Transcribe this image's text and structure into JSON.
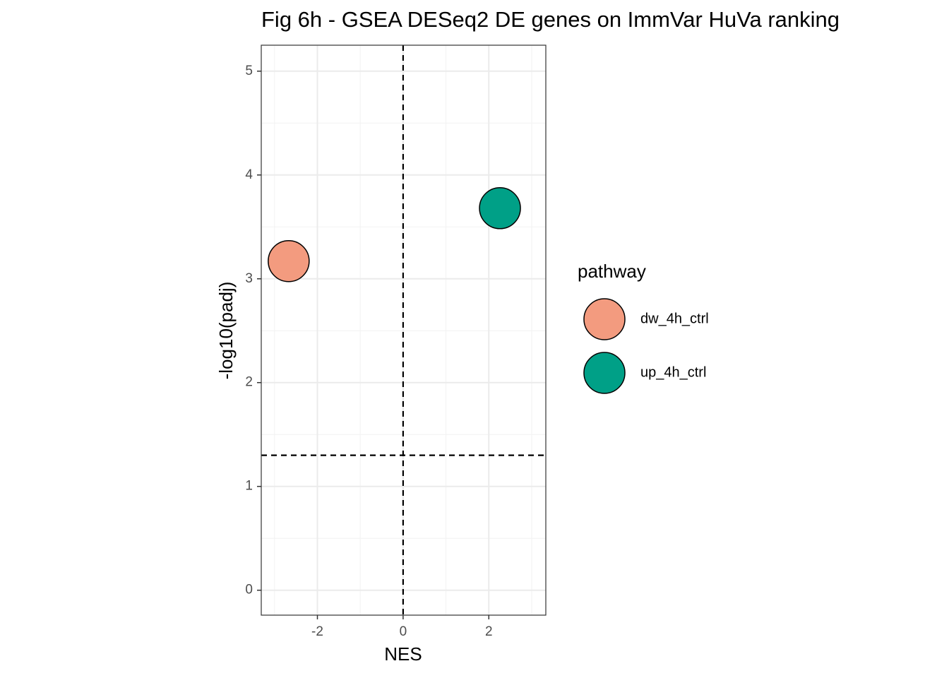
{
  "chart_data": {
    "type": "scatter",
    "title": "Fig 6h - GSEA DESeq2 DE genes on ImmVar HuVa ranking",
    "x_label": "NES",
    "y_label": "-log10(padj)",
    "legend_title": "pathway",
    "series": [
      {
        "name": "dw_4h_ctrl",
        "color": "#f39b7f",
        "x": [
          -2.67
        ],
        "values": [
          3.17
        ]
      },
      {
        "name": "up_4h_ctrl",
        "color": "#00a087",
        "x": [
          2.26
        ],
        "values": [
          3.68
        ]
      }
    ],
    "xlim": [
      -3.31,
      3.33
    ],
    "ylim": [
      -0.24,
      5.25
    ],
    "xticks": [
      -2,
      0,
      2
    ],
    "yticks": [
      0,
      1,
      2,
      3,
      4,
      5
    ],
    "minor_xticks": [
      -3,
      -1,
      1,
      3
    ],
    "minor_yticks": [
      0.5,
      1.5,
      2.5,
      3.5,
      4.5
    ],
    "reference_lines": {
      "x": 0,
      "y": 1.3
    },
    "grid": true
  }
}
